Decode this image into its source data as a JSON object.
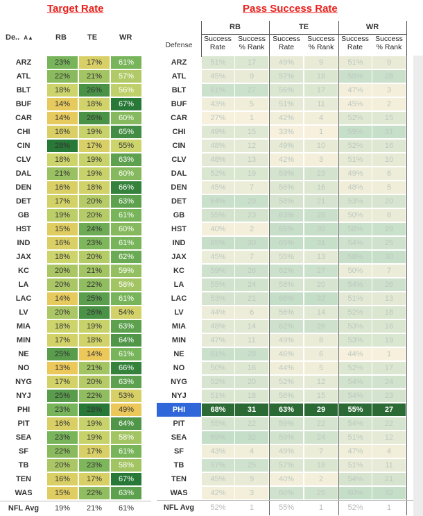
{
  "left_title": "Target Rate",
  "right_title": "Pass Success Rate",
  "left_header": {
    "defense": "De..",
    "cols": [
      "RB",
      "TE",
      "WR"
    ]
  },
  "right_header": {
    "defense": "Defense",
    "groups": [
      "RB",
      "TE",
      "WR"
    ],
    "sub_rate": "Success Rate",
    "sub_rank": "Success % Rank"
  },
  "colors": {
    "title": "#e8201c",
    "highlight_team": "#2f66d9",
    "highlight_row": "#2b6a34"
  },
  "chart_data": [
    {
      "type": "table",
      "title": "Target Rate",
      "columns": [
        "Defense",
        "RB",
        "TE",
        "WR"
      ],
      "rows": [
        [
          "ARZ",
          "23%",
          "17%",
          "61%"
        ],
        [
          "ATL",
          "22%",
          "21%",
          "57%"
        ],
        [
          "BLT",
          "18%",
          "26%",
          "56%"
        ],
        [
          "BUF",
          "14%",
          "18%",
          "67%"
        ],
        [
          "CAR",
          "14%",
          "26%",
          "60%"
        ],
        [
          "CHI",
          "16%",
          "19%",
          "65%"
        ],
        [
          "CIN",
          "28%",
          "17%",
          "55%"
        ],
        [
          "CLV",
          "18%",
          "19%",
          "63%"
        ],
        [
          "DAL",
          "21%",
          "19%",
          "60%"
        ],
        [
          "DEN",
          "16%",
          "18%",
          "66%"
        ],
        [
          "DET",
          "17%",
          "20%",
          "63%"
        ],
        [
          "GB",
          "19%",
          "20%",
          "61%"
        ],
        [
          "HST",
          "15%",
          "24%",
          "60%"
        ],
        [
          "IND",
          "16%",
          "23%",
          "61%"
        ],
        [
          "JAX",
          "18%",
          "20%",
          "62%"
        ],
        [
          "KC",
          "20%",
          "21%",
          "59%"
        ],
        [
          "LA",
          "20%",
          "22%",
          "58%"
        ],
        [
          "LAC",
          "14%",
          "25%",
          "61%"
        ],
        [
          "LV",
          "20%",
          "26%",
          "54%"
        ],
        [
          "MIA",
          "18%",
          "19%",
          "63%"
        ],
        [
          "MIN",
          "17%",
          "18%",
          "64%"
        ],
        [
          "NE",
          "25%",
          "14%",
          "61%"
        ],
        [
          "NO",
          "13%",
          "21%",
          "66%"
        ],
        [
          "NYG",
          "17%",
          "20%",
          "63%"
        ],
        [
          "NYJ",
          "25%",
          "22%",
          "53%"
        ],
        [
          "PHI",
          "23%",
          "28%",
          "49%"
        ],
        [
          "PIT",
          "16%",
          "19%",
          "64%"
        ],
        [
          "SEA",
          "23%",
          "19%",
          "58%"
        ],
        [
          "SF",
          "22%",
          "17%",
          "61%"
        ],
        [
          "TB",
          "20%",
          "23%",
          "58%"
        ],
        [
          "TEN",
          "16%",
          "17%",
          "67%"
        ],
        [
          "WAS",
          "15%",
          "22%",
          "63%"
        ]
      ],
      "avg": [
        "NFL Avg",
        "19%",
        "21%",
        "61%"
      ]
    },
    {
      "type": "table",
      "title": "Pass Success Rate",
      "columns": [
        "Defense",
        "RB Success Rate",
        "RB Success % Rank",
        "TE Success Rate",
        "TE Success % Rank",
        "WR Success Rate",
        "WR Success % Rank"
      ],
      "rows": [
        [
          "ARZ",
          "51%",
          "17",
          "49%",
          "9",
          "51%",
          "9"
        ],
        [
          "ATL",
          "45%",
          "9",
          "57%",
          "18",
          "55%",
          "28"
        ],
        [
          "BLT",
          "61%",
          "27",
          "56%",
          "17",
          "47%",
          "3"
        ],
        [
          "BUF",
          "43%",
          "5",
          "51%",
          "11",
          "45%",
          "2"
        ],
        [
          "CAR",
          "27%",
          "1",
          "42%",
          "4",
          "52%",
          "15"
        ],
        [
          "CHI",
          "49%",
          "15",
          "33%",
          "1",
          "59%",
          "31"
        ],
        [
          "CIN",
          "48%",
          "12",
          "49%",
          "10",
          "52%",
          "16"
        ],
        [
          "CLV",
          "48%",
          "13",
          "42%",
          "3",
          "51%",
          "10"
        ],
        [
          "DAL",
          "52%",
          "19",
          "59%",
          "23",
          "49%",
          "6"
        ],
        [
          "DEN",
          "45%",
          "7",
          "56%",
          "16",
          "48%",
          "5"
        ],
        [
          "DET",
          "64%",
          "29",
          "58%",
          "21",
          "53%",
          "20"
        ],
        [
          "GB",
          "55%",
          "23",
          "63%",
          "28",
          "50%",
          "8"
        ],
        [
          "HST",
          "40%",
          "2",
          "65%",
          "30",
          "58%",
          "29"
        ],
        [
          "IND",
          "65%",
          "30",
          "65%",
          "31",
          "54%",
          "25"
        ],
        [
          "JAX",
          "45%",
          "7",
          "55%",
          "13",
          "58%",
          "30"
        ],
        [
          "KC",
          "59%",
          "26",
          "62%",
          "27",
          "50%",
          "7"
        ],
        [
          "LA",
          "55%",
          "24",
          "58%",
          "20",
          "54%",
          "26"
        ],
        [
          "LAC",
          "53%",
          "21",
          "66%",
          "32",
          "51%",
          "13"
        ],
        [
          "LV",
          "44%",
          "6",
          "56%",
          "14",
          "52%",
          "18"
        ],
        [
          "MIA",
          "48%",
          "14",
          "62%",
          "26",
          "53%",
          "18"
        ],
        [
          "MIN",
          "47%",
          "11",
          "49%",
          "8",
          "53%",
          "19"
        ],
        [
          "NE",
          "61%",
          "28",
          "46%",
          "6",
          "44%",
          "1"
        ],
        [
          "NO",
          "50%",
          "16",
          "44%",
          "5",
          "52%",
          "17"
        ],
        [
          "NYG",
          "52%",
          "20",
          "52%",
          "12",
          "54%",
          "24"
        ],
        [
          "NYJ",
          "51%",
          "18",
          "56%",
          "15",
          "54%",
          "23"
        ],
        [
          "PHI",
          "68%",
          "31",
          "63%",
          "29",
          "55%",
          "27"
        ],
        [
          "PIT",
          "55%",
          "22",
          "59%",
          "22",
          "54%",
          "22"
        ],
        [
          "SEA",
          "69%",
          "32",
          "59%",
          "24",
          "51%",
          "12"
        ],
        [
          "SF",
          "43%",
          "4",
          "49%",
          "7",
          "47%",
          "4"
        ],
        [
          "TB",
          "57%",
          "25",
          "57%",
          "18",
          "51%",
          "11"
        ],
        [
          "TEN",
          "45%",
          "9",
          "40%",
          "2",
          "54%",
          "21"
        ],
        [
          "WAS",
          "42%",
          "3",
          "60%",
          "25",
          "60%",
          "32"
        ]
      ],
      "avg": [
        "NFL Avg",
        "52%",
        "1",
        "55%",
        "1",
        "52%",
        "1"
      ],
      "highlight_team": "PHI"
    }
  ]
}
